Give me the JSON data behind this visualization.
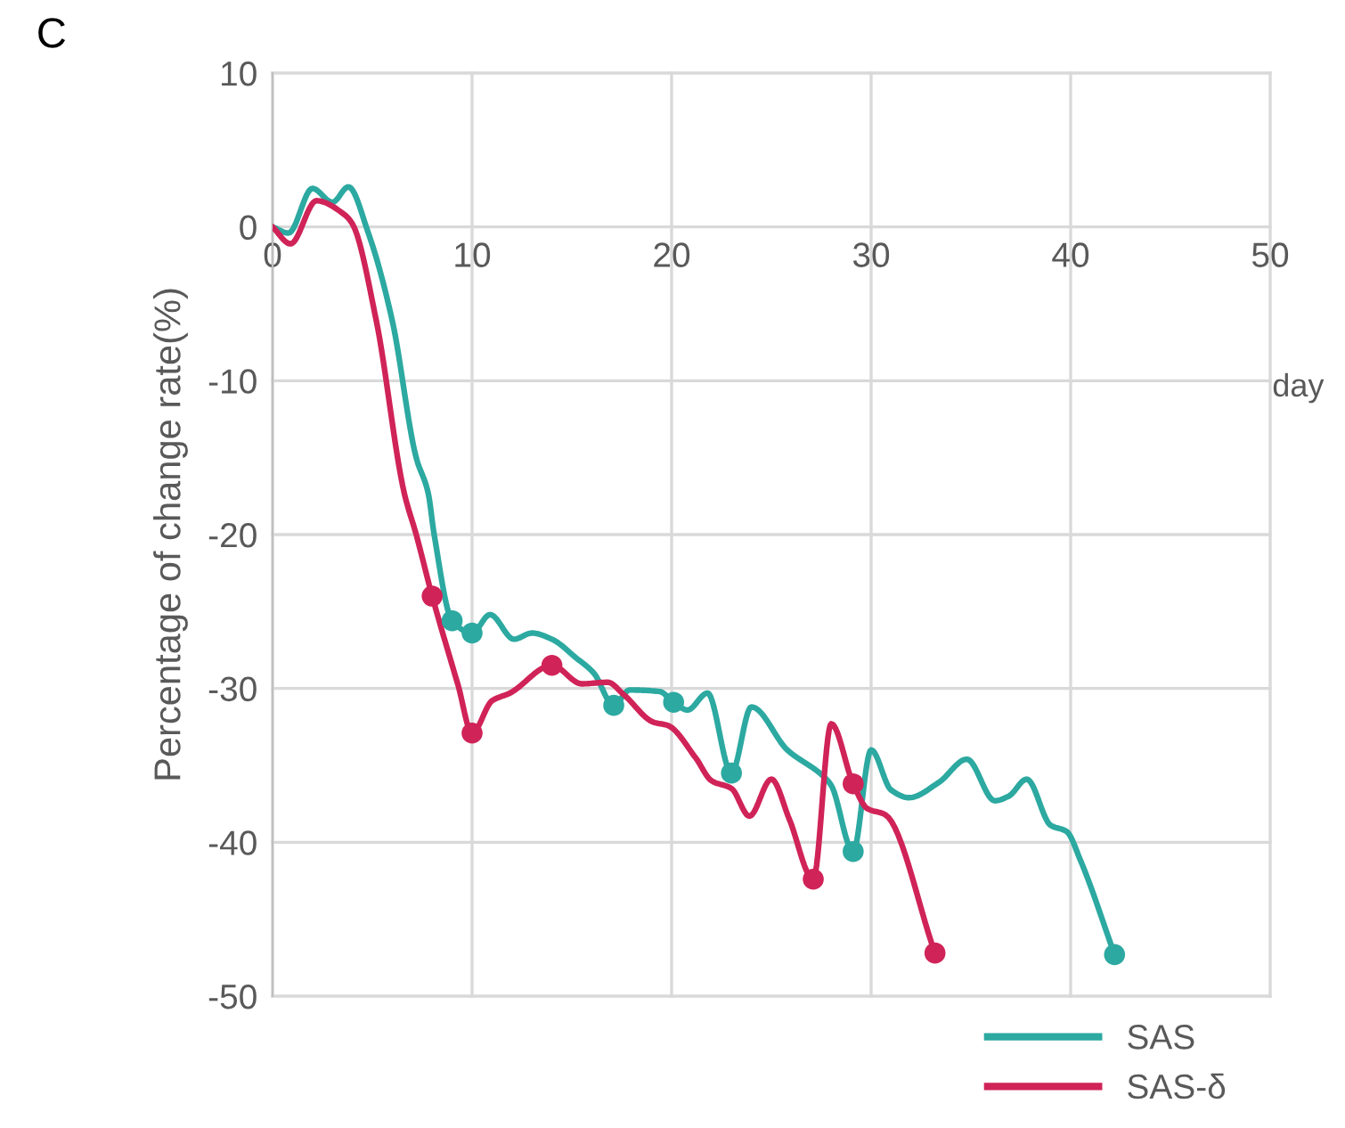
{
  "chart_data": {
    "type": "line",
    "xlabel": "day",
    "ylabel": "Percentage of change rate(%)",
    "annotations": [
      "C"
    ],
    "xlim": [
      0,
      50
    ],
    "ylim": [
      -50,
      10
    ],
    "xticks": [
      0,
      10,
      20,
      30,
      40,
      50
    ],
    "yticks": [
      -50,
      -40,
      -30,
      -20,
      -10,
      0,
      10
    ],
    "grid": true,
    "legend": "bottom right",
    "series": [
      {
        "name": "SAS",
        "color": "#2ca9a1",
        "marker": "none",
        "x": [
          0,
          0.8,
          2.0,
          3.0,
          3.8,
          4.8,
          6.0,
          7.2,
          7.8,
          8.1,
          9.0,
          10.0,
          10.9,
          12.1,
          13.0,
          14.0,
          15.2,
          16.1,
          17.1,
          17.9,
          19.4,
          20.1,
          20.8,
          21.8,
          23.0,
          24.0,
          25.8,
          27.6,
          28.0,
          29.1,
          30.0,
          31.0,
          31.9,
          33.4,
          34.8,
          36.2,
          36.9,
          37.8,
          39.0,
          39.8,
          40.5,
          42.2
        ],
        "values": [
          0,
          -0.4,
          2.5,
          1.6,
          2.6,
          -0.4,
          -6.1,
          -15.0,
          -17.3,
          -20.0,
          -25.6,
          -26.4,
          -25.2,
          -26.8,
          -26.4,
          -26.8,
          -28.0,
          -29.0,
          -31.1,
          -30.1,
          -30.2,
          -30.9,
          -31.4,
          -30.3,
          -35.5,
          -31.2,
          -34.0,
          -35.7,
          -36.3,
          -40.6,
          -34.0,
          -36.6,
          -37.1,
          -36.1,
          -34.6,
          -37.3,
          -37.0,
          -35.9,
          -38.9,
          -39.3,
          -41.2,
          -47.3
        ]
      },
      {
        "name": "SAS-δ",
        "color": "#d02358",
        "marker": "none",
        "x": [
          0,
          0.9,
          2.2,
          3.6,
          4.0,
          5.2,
          6.6,
          7.2,
          8.0,
          9.3,
          10.0,
          11.0,
          11.9,
          14.0,
          15.5,
          16.8,
          17.6,
          19.1,
          19.8,
          21.2,
          22.0,
          23.0,
          23.9,
          25.0,
          25.9,
          27.1,
          28.0,
          29.1,
          29.8,
          30.7,
          33.2
        ],
        "values": [
          0,
          -1.1,
          1.7,
          0.8,
          0.2,
          -6.1,
          -17.3,
          -20.0,
          -24.0,
          -29.8,
          -32.9,
          -30.8,
          -30.3,
          -28.5,
          -29.7,
          -29.6,
          -30.4,
          -32.2,
          -32.4,
          -34.5,
          -36.0,
          -36.5,
          -38.3,
          -35.9,
          -38.5,
          -42.4,
          -32.3,
          -36.2,
          -37.8,
          -38.2,
          -47.2
        ]
      },
      {
        "type": "scatter",
        "color": "#2ca9a1",
        "marker": "circle",
        "x": [
          9.0,
          10.0,
          17.1,
          20.1,
          23.0,
          29.1,
          42.2
        ],
        "values": [
          -25.6,
          -26.4,
          -31.1,
          -30.9,
          -35.5,
          -40.6,
          -47.3
        ]
      },
      {
        "type": "scatter",
        "color": "#d02358",
        "marker": "circle",
        "x": [
          8.0,
          10.0,
          14.0,
          27.1,
          29.1,
          33.2
        ],
        "values": [
          -24.0,
          -32.9,
          -28.5,
          -42.4,
          -36.2,
          -47.2
        ]
      }
    ]
  }
}
